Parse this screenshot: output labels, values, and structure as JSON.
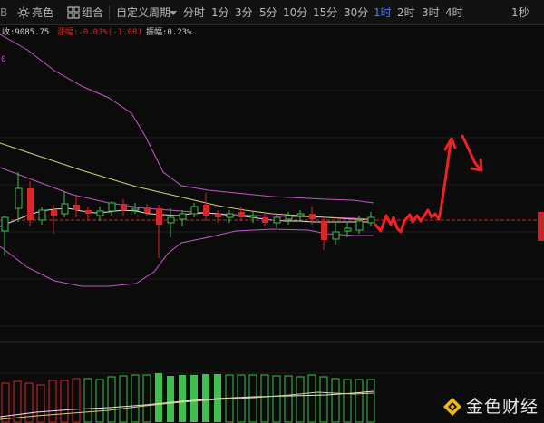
{
  "toolbar": {
    "left_cut_text": "B",
    "bright_label": "亮色",
    "combo_label": "组合",
    "custom_period_label": "自定义周期",
    "periods": [
      "分时",
      "1分",
      "3分",
      "5分",
      "10分",
      "15分",
      "30分",
      "1时",
      "2时",
      "3时",
      "4时"
    ],
    "active_period": "1时",
    "right_period": "1秒"
  },
  "infobar": {
    "close": "收:9085.75",
    "change": "涨幅:-0.01%(-1.08)",
    "amplitude": "振幅:0.23%",
    "side_label": "0"
  },
  "colors": {
    "up": "#3fbf4e",
    "down": "#d8262a",
    "boll": "#c257c8",
    "ma": "#d9cf7a",
    "ma2": "#e0e0e0",
    "price_line": "#c0292b",
    "arrow": "#ee2222",
    "accent": "#4d7dff",
    "logo": "#f0b90b"
  },
  "logo": {
    "text": "金色财经",
    "icon": "jinse-logo-icon"
  }
}
